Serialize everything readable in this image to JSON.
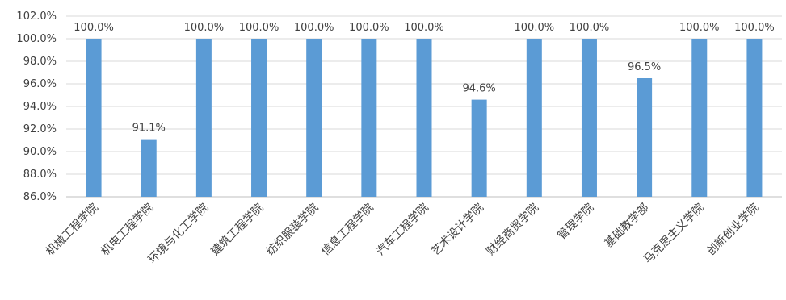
{
  "chart_data": {
    "type": "bar",
    "title": "",
    "xlabel": "",
    "ylabel": "",
    "categories": [
      "机械工程学院",
      "机电工程学院",
      "环境与化工学院",
      "建筑工程学院",
      "纺织服装学院",
      "信息工程学院",
      "汽车工程学院",
      "艺术设计学院",
      "财经商贸学院",
      "管理学院",
      "基础教学部",
      "马克思主义学院",
      "创新创业学院"
    ],
    "values": [
      100.0,
      91.1,
      100.0,
      100.0,
      100.0,
      100.0,
      100.0,
      94.6,
      100.0,
      100.0,
      96.5,
      100.0,
      100.0
    ],
    "data_labels": [
      "100.0%",
      "91.1%",
      "100.0%",
      "100.0%",
      "100.0%",
      "100.0%",
      "100.0%",
      "94.6%",
      "100.0%",
      "100.0%",
      "96.5%",
      "100.0%",
      "100.0%"
    ],
    "ylim": [
      86.0,
      102.0
    ],
    "yticks": [
      86.0,
      88.0,
      90.0,
      92.0,
      94.0,
      96.0,
      98.0,
      100.0,
      102.0
    ],
    "ytick_labels": [
      "86.0%",
      "88.0%",
      "90.0%",
      "92.0%",
      "94.0%",
      "96.0%",
      "98.0%",
      "100.0%",
      "102.0%"
    ],
    "grid": true,
    "legend": "none",
    "colors": {
      "bar": "#5b9bd5",
      "grid": "#d9d9d9",
      "text": "#404040"
    }
  }
}
